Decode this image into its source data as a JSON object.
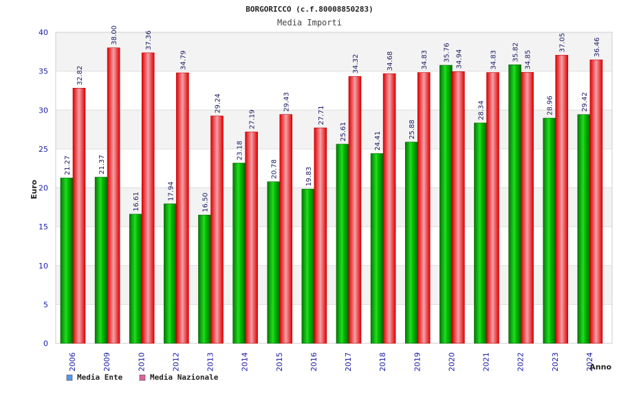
{
  "chart_data": {
    "type": "bar",
    "title": "BORGORICCO (c.f.80008850283)",
    "subtitle": "Media Importi",
    "xlabel": "Anno",
    "ylabel": "Euro",
    "ylim": [
      0,
      40
    ],
    "yticks": [
      "0",
      "5",
      "10",
      "15",
      "20",
      "25",
      "30",
      "35",
      "40"
    ],
    "categories": [
      "2006",
      "2009",
      "2010",
      "2012",
      "2013",
      "2014",
      "2015",
      "2016",
      "2017",
      "2018",
      "2019",
      "2020",
      "2021",
      "2022",
      "2023",
      "2024"
    ],
    "series": [
      {
        "name": "Media Ente",
        "color": "#00b000",
        "legend_color": "#5599ee",
        "values": [
          21.27,
          21.37,
          16.61,
          17.94,
          16.5,
          23.18,
          20.78,
          19.83,
          25.61,
          24.41,
          25.88,
          35.76,
          28.34,
          35.82,
          28.96,
          29.42
        ],
        "labels": [
          "21.27",
          "21.37",
          "16.61",
          "17.94",
          "16.50",
          "23.18",
          "20.78",
          "19.83",
          "25.61",
          "24.41",
          "25.88",
          "35.76",
          "28.34",
          "35.82",
          "28.96",
          "29.42"
        ]
      },
      {
        "name": "Media Nazionale",
        "color": "#e81010",
        "legend_color": "#dd6699",
        "values": [
          32.82,
          38.0,
          37.36,
          34.79,
          29.24,
          27.19,
          29.43,
          27.71,
          34.32,
          34.68,
          34.83,
          34.94,
          34.83,
          34.85,
          37.05,
          36.46
        ],
        "labels": [
          "32.82",
          "38.00",
          "37.36",
          "34.79",
          "29.24",
          "27.19",
          "29.43",
          "27.71",
          "34.32",
          "34.68",
          "34.83",
          "34.94",
          "34.83",
          "34.85",
          "37.05",
          "36.46"
        ]
      }
    ],
    "grid": true,
    "legend": "bottom-left"
  }
}
